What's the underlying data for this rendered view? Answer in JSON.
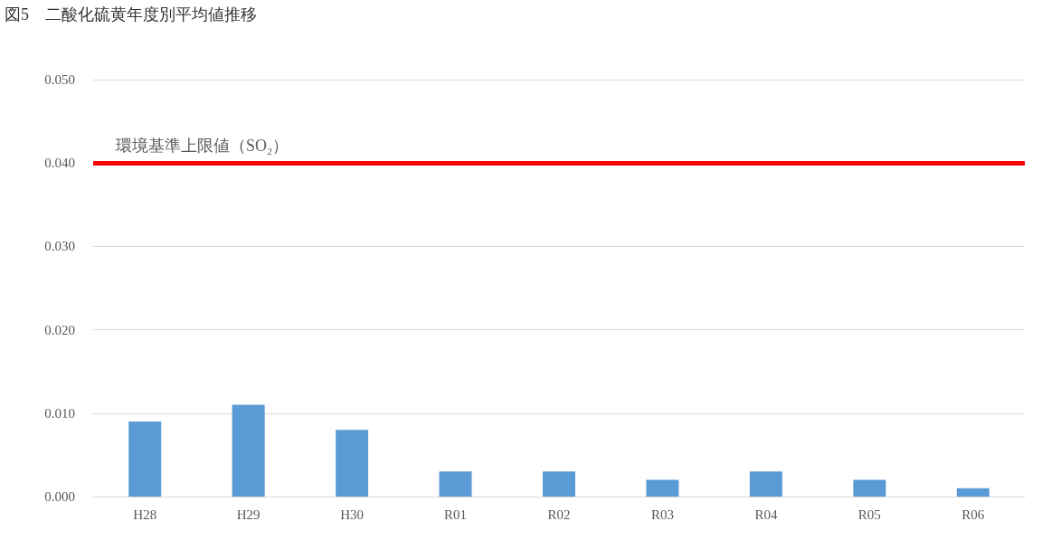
{
  "chart_data": {
    "type": "bar",
    "title": "図5　二酸化硫黄年度別平均値推移",
    "categories": [
      "H28",
      "H29",
      "H30",
      "R01",
      "R02",
      "R03",
      "R04",
      "R05",
      "R06"
    ],
    "values": [
      0.009,
      0.011,
      0.008,
      0.003,
      0.003,
      0.002,
      0.003,
      0.002,
      0.001
    ],
    "color": "#5b9bd5",
    "ylim": [
      0,
      0.05
    ],
    "yticks": [
      {
        "value": 0,
        "label": "0.000"
      },
      {
        "value": 0.01,
        "label": "0.010"
      },
      {
        "value": 0.02,
        "label": "0.020"
      },
      {
        "value": 0.03,
        "label": "0.030"
      },
      {
        "value": 0.04,
        "label": "0.040"
      },
      {
        "value": 0.05,
        "label": "0.050"
      }
    ],
    "ref_lines": [
      {
        "axis": "y",
        "value": 0.04,
        "label": "環境基準上限値（SO₂）",
        "color": "#ff0000"
      }
    ],
    "grid": "y"
  }
}
